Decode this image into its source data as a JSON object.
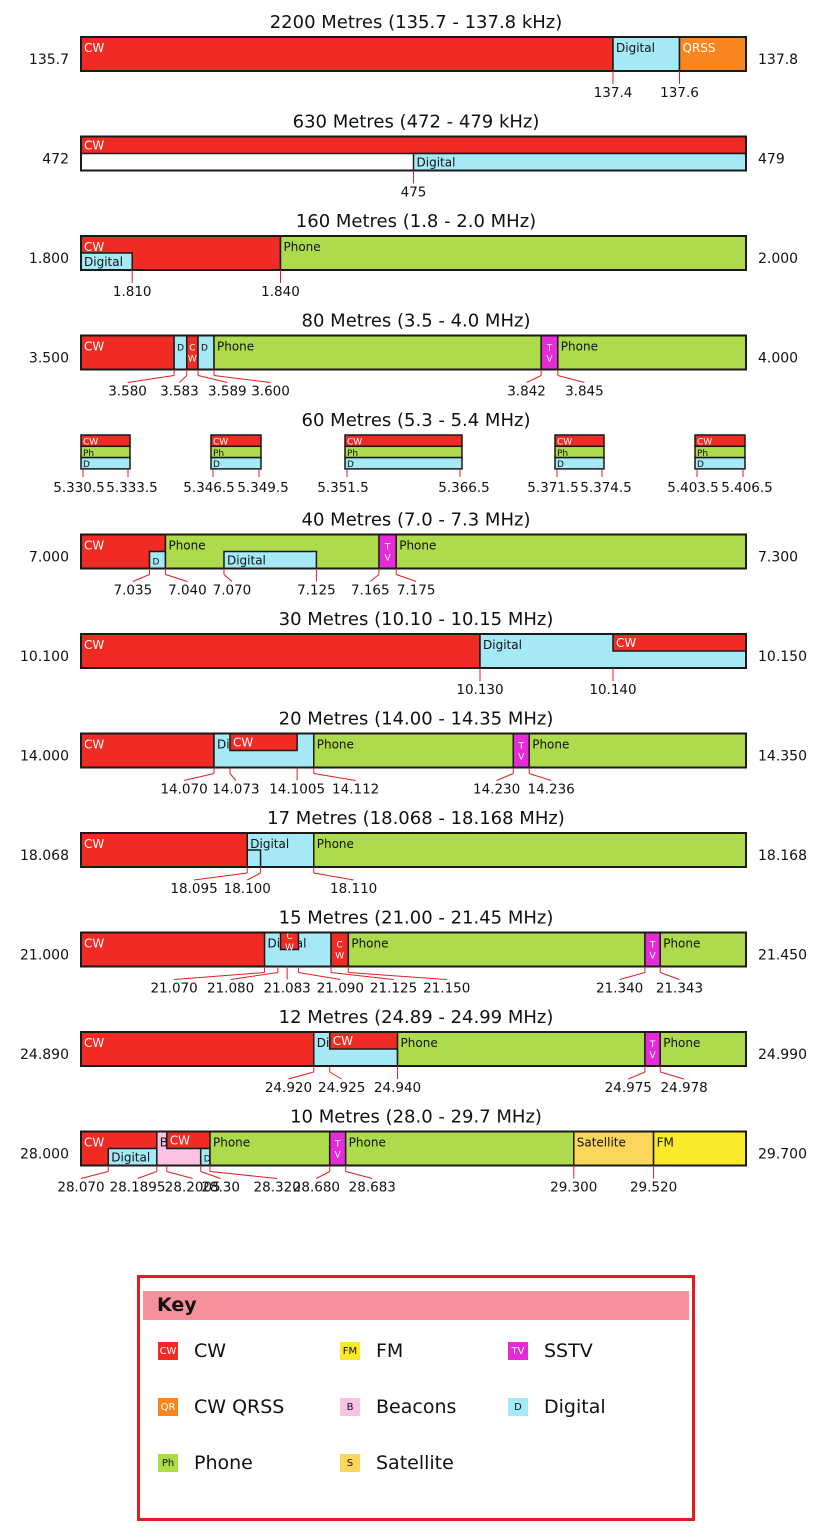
{
  "colors": {
    "CW": "#ef2b24",
    "QRSS": "#f7861e",
    "Digital": "#a6e9f6",
    "Phone": "#addb4c",
    "SSTV": "#e42bd6",
    "FM": "#fbea2c",
    "Beacons": "#fbc3e3",
    "Satellite": "#fbd65c",
    "outline": "#1a1a1a",
    "tick": "#e01e24"
  },
  "bands": [
    {
      "title": "2200 Metres (135.7 - 137.8 kHz)",
      "low": "135.7",
      "high": "137.8",
      "segments": [
        {
          "type": "CW",
          "label": "CW",
          "from": 0,
          "to": 0.8
        },
        {
          "type": "Digital",
          "label": "Digital",
          "from": 0.8,
          "to": 0.9
        },
        {
          "type": "QRSS",
          "label": "QRSS",
          "from": 0.9,
          "to": 1.0
        }
      ],
      "ticks": [
        {
          "label": "137.4",
          "pos": 0.8
        },
        {
          "label": "137.6",
          "pos": 0.9
        }
      ]
    },
    {
      "title": "630 Metres (472 - 479 kHz)",
      "low": "472",
      "high": "479",
      "segments": [
        {
          "type": "CW",
          "label": "CW",
          "from": 0,
          "to": 1.0,
          "row": "top"
        },
        {
          "type": "Digital",
          "label": "Digital",
          "from": 0.5,
          "to": 1.0,
          "row": "bottom"
        }
      ],
      "ticks": [
        {
          "label": "475",
          "pos": 0.5
        }
      ]
    },
    {
      "title": "160 Metres (1.8 - 2.0 MHz)",
      "low": "1.800",
      "high": "2.000",
      "segments": [
        {
          "type": "CW",
          "label": "CW",
          "from": 0,
          "to": 0.3
        },
        {
          "type": "Digital",
          "label": "Digital",
          "from": 0,
          "to": 0.077,
          "row": "bottom"
        },
        {
          "type": "Phone",
          "label": "Phone",
          "from": 0.3,
          "to": 1.0
        }
      ],
      "ticks": [
        {
          "label": "1.810",
          "pos": 0.077
        },
        {
          "label": "1.840",
          "pos": 0.3
        }
      ]
    },
    {
      "title": "80 Metres (3.5 - 4.0 MHz)",
      "low": "3.500",
      "high": "4.000",
      "segments": [
        {
          "type": "CW",
          "label": "CW",
          "from": 0,
          "to": 0.14
        },
        {
          "type": "Digital",
          "label": "D",
          "from": 0.14,
          "to": 0.159
        },
        {
          "type": "CW",
          "label": "C W",
          "from": 0.159,
          "to": 0.176
        },
        {
          "type": "Digital",
          "label": "D",
          "from": 0.176,
          "to": 0.2
        },
        {
          "type": "Phone",
          "label": "Phone",
          "from": 0.2,
          "to": 0.692
        },
        {
          "type": "SSTV",
          "label": "T V",
          "from": 0.692,
          "to": 0.717
        },
        {
          "type": "Phone",
          "label": "Phone",
          "from": 0.717,
          "to": 1.0
        }
      ],
      "ticks": [
        {
          "label": "3.580",
          "pos": 0.14,
          "lx": 0.07
        },
        {
          "label": "3.583",
          "pos": 0.159,
          "lx": 0.148
        },
        {
          "label": "3.589",
          "pos": 0.176,
          "lx": 0.22
        },
        {
          "label": "3.600",
          "pos": 0.2,
          "lx": 0.285
        },
        {
          "label": "3.842",
          "pos": 0.692,
          "lx": 0.67
        },
        {
          "label": "3.845",
          "pos": 0.717,
          "lx": 0.757
        }
      ]
    },
    {
      "title": "60 Metres (5.3 - 5.4 MHz)",
      "subbands": [
        {
          "left": 81,
          "right": 130,
          "lo": "5.330.5",
          "hi": "5.333.5"
        },
        {
          "left": 211,
          "right": 261,
          "lo": "5.346.5",
          "hi": "5.349.5"
        },
        {
          "left": 345,
          "right": 462,
          "lo": "5.351.5",
          "hi": "5.366.5"
        },
        {
          "left": 555,
          "right": 604,
          "lo": "5.371.5",
          "hi": "5.374.5"
        },
        {
          "left": 695,
          "right": 745,
          "lo": "5.403.5",
          "hi": "5.406.5"
        }
      ],
      "rows": [
        "CW",
        "Ph",
        "D"
      ]
    },
    {
      "title": "40 Metres (7.0 - 7.3 MHz)",
      "low": "7.000",
      "high": "7.300",
      "segments": [
        {
          "type": "CW",
          "label": "CW",
          "from": 0,
          "to": 0.127
        },
        {
          "type": "Digital",
          "label": "D",
          "from": 0.103,
          "to": 0.127,
          "row": "bottom"
        },
        {
          "type": "Phone",
          "label": "Phone",
          "from": 0.127,
          "to": 0.459
        },
        {
          "type": "Digital",
          "label": "Digital",
          "from": 0.215,
          "to": 0.354,
          "row": "bottom"
        },
        {
          "type": "SSTV",
          "label": "T V",
          "from": 0.448,
          "to": 0.474
        },
        {
          "type": "Phone",
          "label": "Phone",
          "from": 0.474,
          "to": 1.0
        }
      ],
      "ticks": [
        {
          "label": "7.035",
          "pos": 0.103,
          "lx": 0.078
        },
        {
          "label": "7.040",
          "pos": 0.127,
          "lx": 0.16
        },
        {
          "label": "7.070",
          "pos": 0.215,
          "lx": 0.227
        },
        {
          "label": "7.125",
          "pos": 0.354,
          "lx": 0.354
        },
        {
          "label": "7.165",
          "pos": 0.448,
          "lx": 0.435
        },
        {
          "label": "7.175",
          "pos": 0.474,
          "lx": 0.504
        }
      ]
    },
    {
      "title": "30 Metres (10.10 - 10.15 MHz)",
      "low": "10.100",
      "high": "10.150",
      "segments": [
        {
          "type": "CW",
          "label": "CW",
          "from": 0,
          "to": 0.6
        },
        {
          "type": "Digital",
          "label": "Digital",
          "from": 0.6,
          "to": 1.0
        },
        {
          "type": "CW",
          "label": "CW",
          "from": 0.8,
          "to": 1.0,
          "row": "top"
        }
      ],
      "ticks": [
        {
          "label": "10.130",
          "pos": 0.6
        },
        {
          "label": "10.140",
          "pos": 0.8
        }
      ]
    },
    {
      "title": "20 Metres (14.00 - 14.35 MHz)",
      "low": "14.000",
      "high": "14.350",
      "segments": [
        {
          "type": "CW",
          "label": "CW",
          "from": 0,
          "to": 0.2
        },
        {
          "type": "Digital",
          "label": "Digital",
          "from": 0.2,
          "to": 0.35
        },
        {
          "type": "CW",
          "label": "CW",
          "from": 0.224,
          "to": 0.325,
          "row": "top"
        },
        {
          "type": "Phone",
          "label": "Phone",
          "from": 0.35,
          "to": 0.65
        },
        {
          "type": "SSTV",
          "label": "T V",
          "from": 0.65,
          "to": 0.674
        },
        {
          "type": "Phone",
          "label": "Phone",
          "from": 0.674,
          "to": 1.0
        }
      ],
      "ticks": [
        {
          "label": "14.070",
          "pos": 0.2,
          "lx": 0.155
        },
        {
          "label": "14.073",
          "pos": 0.224,
          "lx": 0.233
        },
        {
          "label": "14.1005",
          "pos": 0.325,
          "lx": 0.325
        },
        {
          "label": "14.112",
          "pos": 0.35,
          "lx": 0.413
        },
        {
          "label": "14.230",
          "pos": 0.65,
          "lx": 0.625
        },
        {
          "label": "14.236",
          "pos": 0.674,
          "lx": 0.707
        }
      ]
    },
    {
      "title": "17 Metres (18.068 - 18.168 MHz)",
      "low": "18.068",
      "high": "18.168",
      "segments": [
        {
          "type": "CW",
          "label": "CW",
          "from": 0,
          "to": 0.25
        },
        {
          "type": "Digital",
          "label": "Digital",
          "from": 0.25,
          "to": 0.35
        },
        {
          "type": "Digital",
          "label": "",
          "from": 0.25,
          "to": 0.27,
          "row": "bottom"
        },
        {
          "type": "Phone",
          "label": "Phone",
          "from": 0.35,
          "to": 1.0
        }
      ],
      "ticks": [
        {
          "label": "18.095",
          "pos": 0.25,
          "lx": 0.17
        },
        {
          "label": "18.100",
          "pos": 0.27,
          "lx": 0.25
        },
        {
          "label": "18.110",
          "pos": 0.35,
          "lx": 0.41
        }
      ]
    },
    {
      "title": "15 Metres (21.00 - 21.45 MHz)",
      "low": "21.000",
      "high": "21.450",
      "segments": [
        {
          "type": "CW",
          "label": "CW",
          "from": 0,
          "to": 0.296
        },
        {
          "type": "Digital",
          "label": "Digital",
          "from": 0.276,
          "to": 0.376
        },
        {
          "type": "CW",
          "label": "C W",
          "from": 0.3,
          "to": 0.327,
          "row": "top"
        },
        {
          "type": "CW",
          "label": "C W",
          "from": 0.376,
          "to": 0.402
        },
        {
          "type": "Phone",
          "label": "Phone",
          "from": 0.402,
          "to": 0.848
        },
        {
          "type": "SSTV",
          "label": "T V",
          "from": 0.848,
          "to": 0.871
        },
        {
          "type": "Phone",
          "label": "Phone",
          "from": 0.871,
          "to": 1.0
        }
      ],
      "ticks": [
        {
          "label": "21.070",
          "pos": 0.276,
          "lx": 0.14
        },
        {
          "label": "21.080",
          "pos": 0.296,
          "lx": 0.225
        },
        {
          "label": "21.083",
          "pos": 0.31,
          "lx": 0.31
        },
        {
          "label": "21.090",
          "pos": 0.327,
          "lx": 0.39
        },
        {
          "label": "21.125",
          "pos": 0.376,
          "lx": 0.47
        },
        {
          "label": "21.150",
          "pos": 0.402,
          "lx": 0.55
        },
        {
          "label": "21.340",
          "pos": 0.848,
          "lx": 0.81
        },
        {
          "label": "21.343",
          "pos": 0.871,
          "lx": 0.9
        }
      ]
    },
    {
      "title": "12 Metres (24.89 - 24.99 MHz)",
      "low": "24.890",
      "high": "24.990",
      "segments": [
        {
          "type": "CW",
          "label": "CW",
          "from": 0,
          "to": 0.35
        },
        {
          "type": "Digital",
          "label": "Digital",
          "from": 0.35,
          "to": 0.476
        },
        {
          "type": "CW",
          "label": "CW",
          "from": 0.374,
          "to": 0.476,
          "row": "top"
        },
        {
          "type": "Phone",
          "label": "Phone",
          "from": 0.476,
          "to": 0.848
        },
        {
          "type": "SSTV",
          "label": "T V",
          "from": 0.848,
          "to": 0.871
        },
        {
          "type": "Phone",
          "label": "Phone",
          "from": 0.871,
          "to": 1.0
        }
      ],
      "ticks": [
        {
          "label": "24.920",
          "pos": 0.35,
          "lx": 0.312
        },
        {
          "label": "24.925",
          "pos": 0.374,
          "lx": 0.392
        },
        {
          "label": "24.940",
          "pos": 0.476,
          "lx": 0.476
        },
        {
          "label": "24.975",
          "pos": 0.848,
          "lx": 0.823
        },
        {
          "label": "24.978",
          "pos": 0.871,
          "lx": 0.907
        }
      ]
    },
    {
      "title": "10 Metres (28.0 - 29.7 MHz)",
      "low": "28.000",
      "high": "29.700",
      "segments": [
        {
          "type": "CW",
          "label": "CW",
          "from": 0,
          "to": 0.114
        },
        {
          "type": "Digital",
          "label": "Digital",
          "from": 0.041,
          "to": 0.114,
          "row": "bottom"
        },
        {
          "type": "Beacons",
          "label": "B",
          "from": 0.114,
          "to": 0.18
        },
        {
          "type": "CW",
          "label": "CW",
          "from": 0.129,
          "to": 0.194,
          "row": "top"
        },
        {
          "type": "Digital",
          "label": "D",
          "from": 0.18,
          "to": 0.194,
          "row": "bottom"
        },
        {
          "type": "Phone",
          "label": "Phone",
          "from": 0.194,
          "to": 0.374
        },
        {
          "type": "SSTV",
          "label": "T V",
          "from": 0.374,
          "to": 0.398
        },
        {
          "type": "Phone",
          "label": "Phone",
          "from": 0.398,
          "to": 0.741
        },
        {
          "type": "Satellite",
          "label": "Satellite",
          "from": 0.741,
          "to": 0.861
        },
        {
          "type": "FM",
          "label": "FM",
          "from": 0.861,
          "to": 1.0
        }
      ],
      "ticks": [
        {
          "label": "28.070",
          "pos": 0.041,
          "lx": 0.0
        },
        {
          "label": "28.1895",
          "pos": 0.114,
          "lx": 0.085
        },
        {
          "label": "28.2005",
          "pos": 0.129,
          "lx": 0.168
        },
        {
          "label": "28.30",
          "pos": 0.18,
          "lx": 0.21
        },
        {
          "label": "28.320",
          "pos": 0.194,
          "lx": 0.295
        },
        {
          "label": "28.680",
          "pos": 0.374,
          "lx": 0.354
        },
        {
          "label": "28.683",
          "pos": 0.398,
          "lx": 0.438
        },
        {
          "label": "29.300",
          "pos": 0.741,
          "lx": 0.741
        },
        {
          "label": "29.520",
          "pos": 0.861,
          "lx": 0.861
        }
      ]
    }
  ],
  "key": {
    "title": "Key",
    "items": [
      {
        "type": "CW",
        "abbr": "CW",
        "label": "CW"
      },
      {
        "type": "FM",
        "abbr": "FM",
        "label": "FM"
      },
      {
        "type": "SSTV",
        "abbr": "TV",
        "label": "SSTV"
      },
      {
        "type": "QRSS",
        "abbr": "QR",
        "label": "CW QRSS"
      },
      {
        "type": "Beacons",
        "abbr": "B",
        "label": "Beacons"
      },
      {
        "type": "Digital",
        "abbr": "D",
        "label": "Digital"
      },
      {
        "type": "Phone",
        "abbr": "Ph",
        "label": "Phone"
      },
      {
        "type": "Satellite",
        "abbr": "S",
        "label": "Satellite"
      }
    ]
  }
}
